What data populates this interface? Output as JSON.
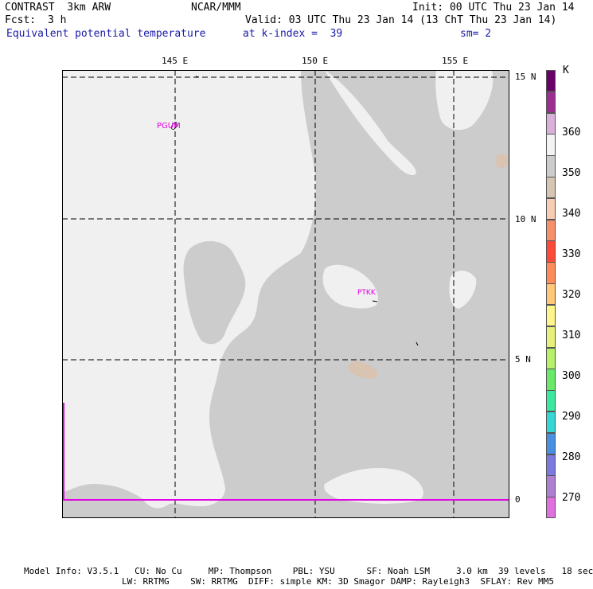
{
  "header": {
    "model": "CONTRAST  3km ARW",
    "center": "NCAR/MMM",
    "init": "Init: 00 UTC Thu 23 Jan 14",
    "fcst_label": "Fcst:",
    "fcst_value": "3 h",
    "valid": "Valid: 03 UTC Thu 23 Jan 14 (13 ChT Thu 23 Jan 14)",
    "field": "Equivalent potential temperature",
    "level": "at k-index =  39",
    "smooth": "sm= 2"
  },
  "map": {
    "lon_ticks": [
      "145 E",
      "150 E",
      "155 E"
    ],
    "lat_ticks": [
      "15 N",
      "10 N",
      "5 N",
      "0"
    ],
    "stations": [
      "PGUM",
      "PTKK"
    ],
    "colors": {
      "sea": "#cccccc",
      "warm_white": "#f0f0f0",
      "tan": "#d9c3b1",
      "grid": "#000000",
      "equator_line": "#e000e0"
    }
  },
  "colorbar": {
    "unit": "K",
    "labels": [
      "360",
      "350",
      "340",
      "330",
      "320",
      "310",
      "300",
      "290",
      "280",
      "270"
    ],
    "colors": [
      "#6a006a",
      "#9a2f8f",
      "#d9b0d9",
      "#f3f3f3",
      "#cccccc",
      "#d7c5b3",
      "#f6cdb4",
      "#f6906a",
      "#ff4a3a",
      "#ff8a5a",
      "#ffc878",
      "#fff58a",
      "#e6f07a",
      "#b8f06a",
      "#6ae86a",
      "#3ae8a0",
      "#36d6d6",
      "#4a90e0",
      "#7a7ae0",
      "#b080d0",
      "#e070e0"
    ]
  },
  "footer": {
    "line1": "Model Info: V3.5.1   CU: No Cu     MP: Thompson    PBL: YSU      SF: Noah LSM     3.0 km  39 levels   18 sec",
    "line2": "LW: RRTMG    SW: RRTMG  DIFF: simple KM: 3D Smagor DAMP: Rayleigh3  SFLAY: Rev MM5"
  }
}
